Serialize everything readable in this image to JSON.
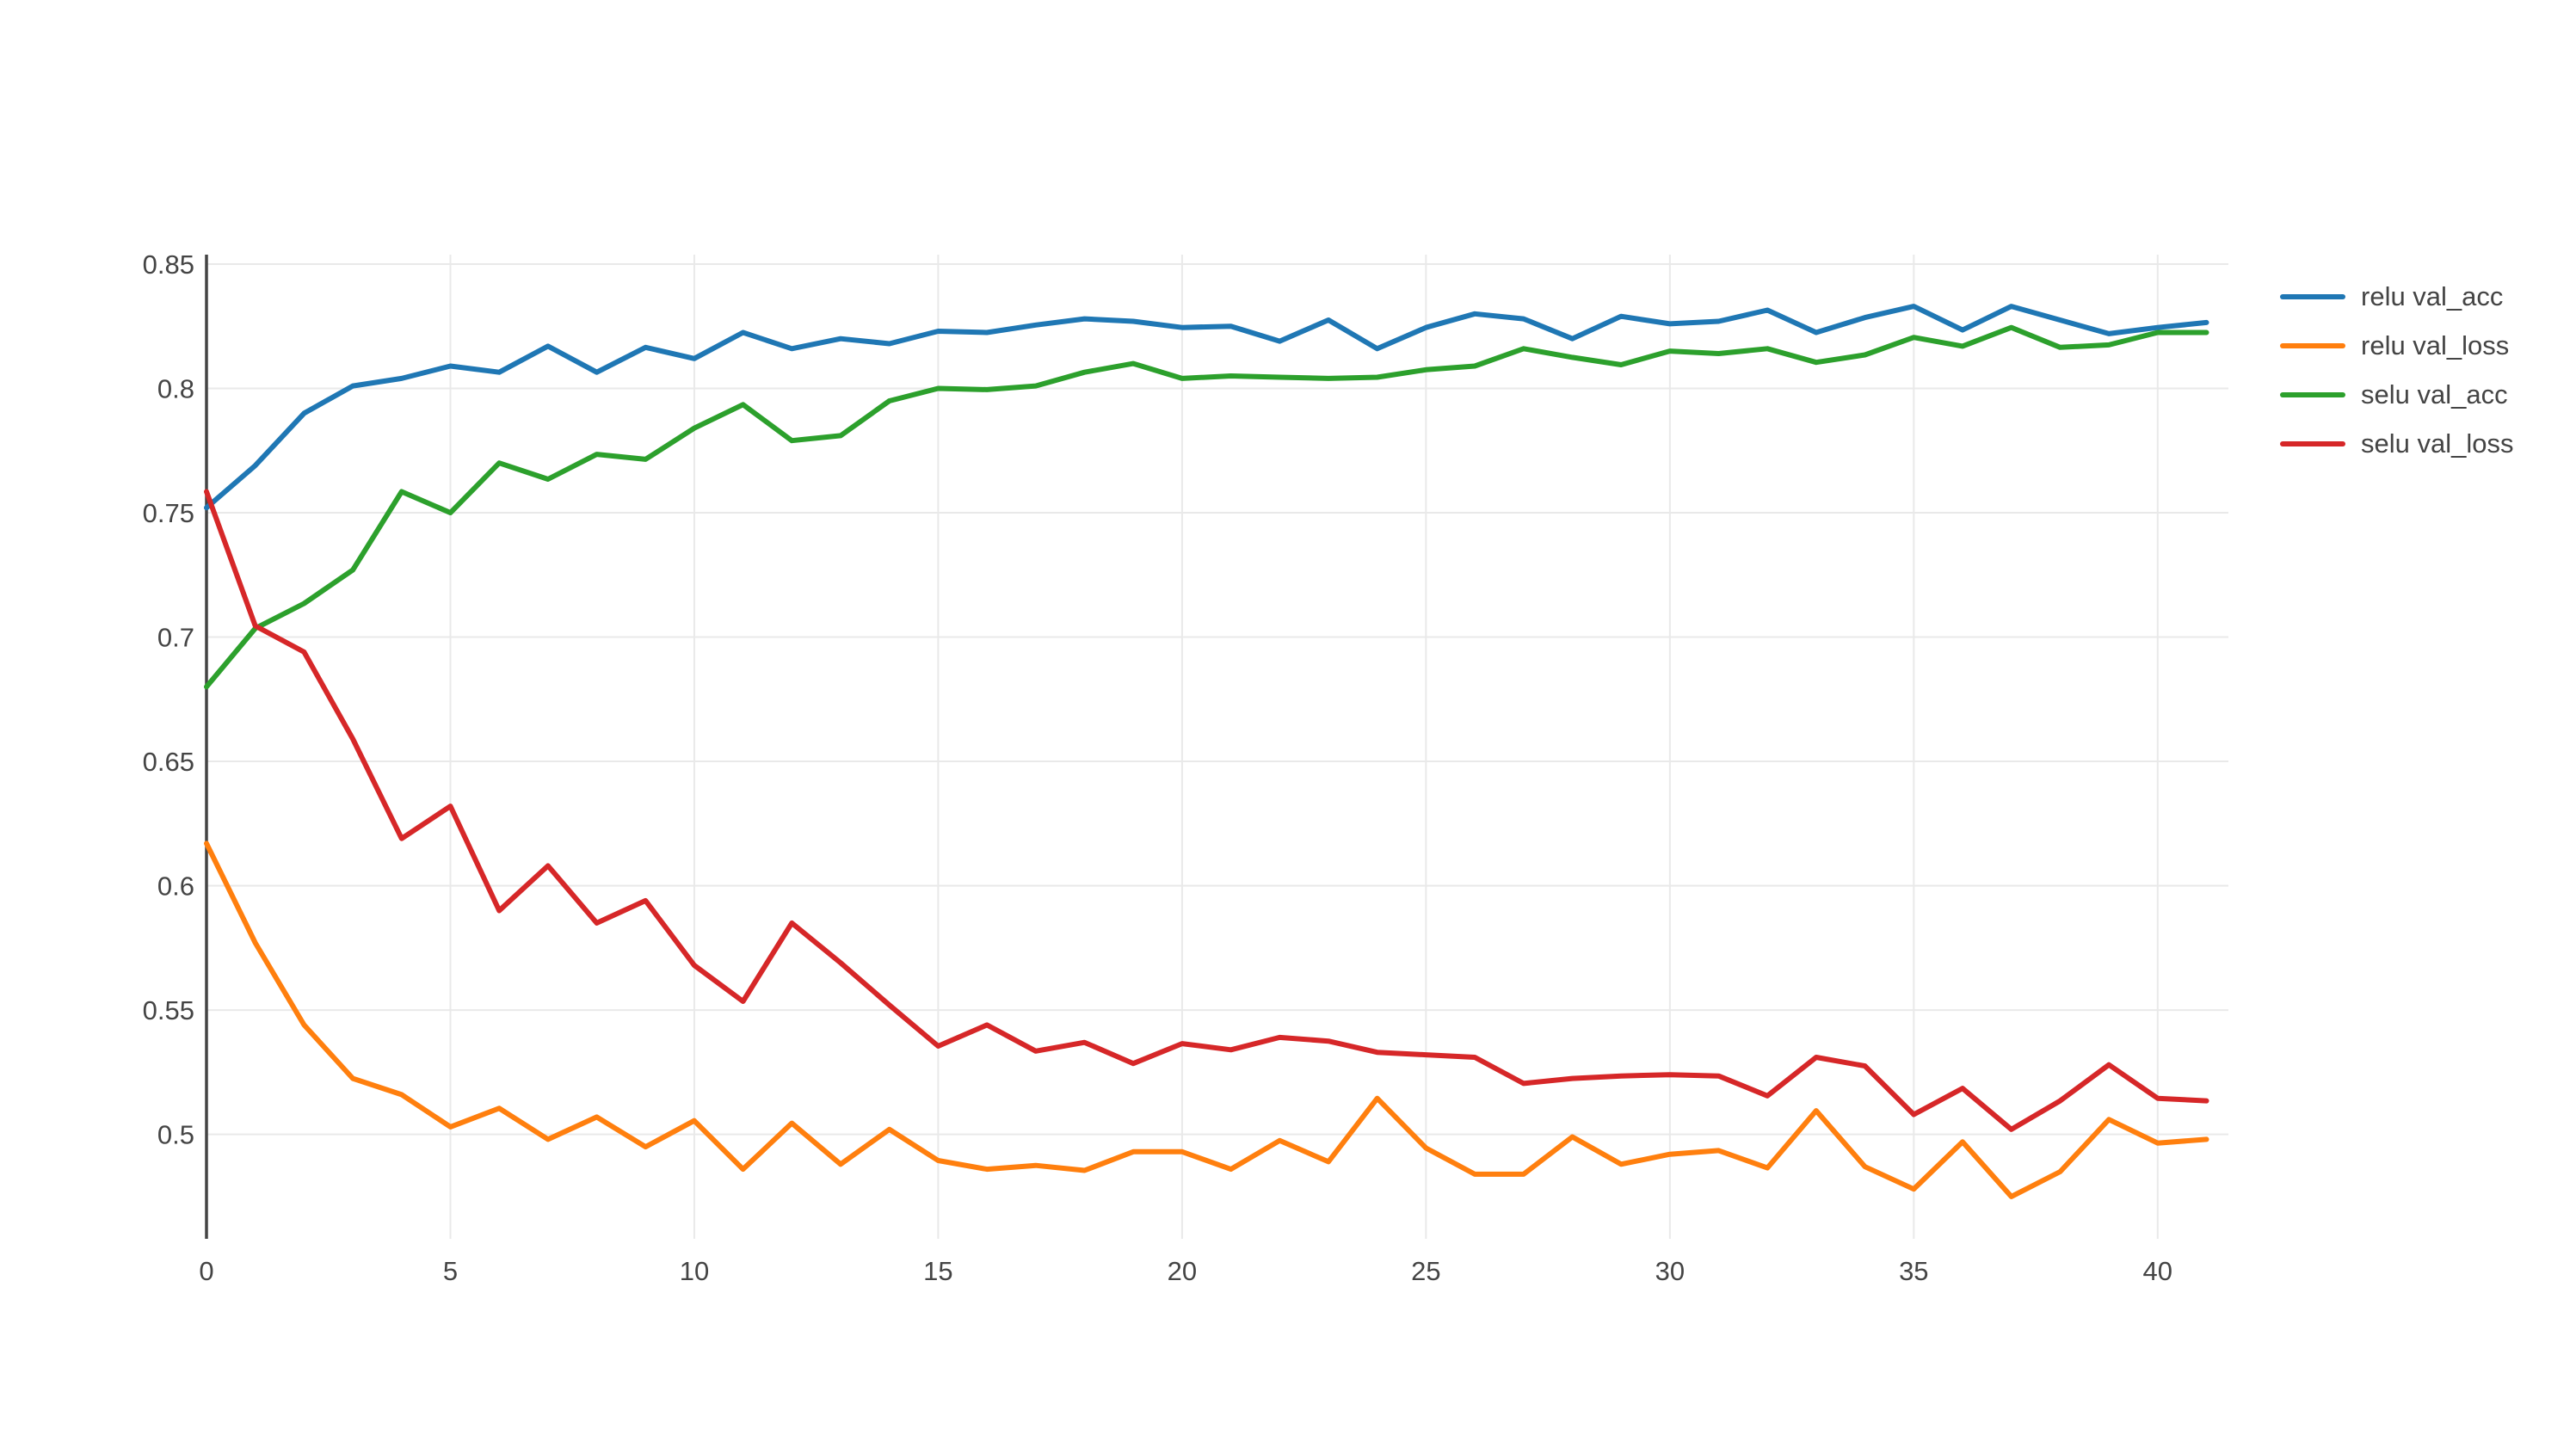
{
  "chart_data": {
    "type": "line",
    "title": "",
    "xlabel": "",
    "ylabel": "",
    "grid": true,
    "legend_position": "right",
    "x_range": [
      0,
      41.45
    ],
    "y_range": [
      0.458,
      0.8538
    ],
    "x_ticks": [
      0,
      5,
      10,
      15,
      20,
      25,
      30,
      35,
      40
    ],
    "x_tick_labels": [
      "0",
      "5",
      "10",
      "15",
      "20",
      "25",
      "30",
      "35",
      "40"
    ],
    "y_ticks": [
      0.5,
      0.55,
      0.6,
      0.65,
      0.7,
      0.75,
      0.8,
      0.85
    ],
    "y_tick_labels": [
      "0.5",
      "0.55",
      "0.6",
      "0.65",
      "0.7",
      "0.75",
      "0.8",
      "0.85"
    ],
    "x": [
      0,
      1,
      2,
      3,
      4,
      5,
      6,
      7,
      8,
      9,
      10,
      11,
      12,
      13,
      14,
      15,
      16,
      17,
      18,
      19,
      20,
      21,
      22,
      23,
      24,
      25,
      26,
      27,
      28,
      29,
      30,
      31,
      32,
      33,
      34,
      35,
      36,
      37,
      38,
      39,
      40,
      41
    ],
    "series": [
      {
        "name": "relu val_acc",
        "color": "#1f77b4",
        "values": [
          0.752,
          0.769,
          0.79,
          0.801,
          0.804,
          0.809,
          0.8065,
          0.817,
          0.8065,
          0.8165,
          0.812,
          0.8225,
          0.816,
          0.82,
          0.818,
          0.823,
          0.8225,
          0.8255,
          0.828,
          0.827,
          0.8245,
          0.825,
          0.819,
          0.8275,
          0.816,
          0.8245,
          0.83,
          0.828,
          0.82,
          0.829,
          0.826,
          0.827,
          0.8315,
          0.8225,
          0.8285,
          0.833,
          0.8235,
          0.833,
          0.8275,
          0.822,
          0.8245,
          0.8265
        ]
      },
      {
        "name": "relu val_loss",
        "color": "#ff7f0e",
        "values": [
          0.617,
          0.577,
          0.544,
          0.5225,
          0.516,
          0.503,
          0.5105,
          0.498,
          0.507,
          0.495,
          0.5055,
          0.486,
          0.5045,
          0.488,
          0.502,
          0.4895,
          0.486,
          0.4875,
          0.4855,
          0.493,
          0.493,
          0.486,
          0.4975,
          0.489,
          0.5145,
          0.4945,
          0.484,
          0.484,
          0.499,
          0.488,
          0.492,
          0.4935,
          0.4865,
          0.5095,
          0.487,
          0.478,
          0.497,
          0.475,
          0.485,
          0.506,
          0.4965,
          0.498
        ]
      },
      {
        "name": "selu val_acc",
        "color": "#2ca02c",
        "values": [
          0.68,
          0.7035,
          0.7135,
          0.727,
          0.7585,
          0.75,
          0.77,
          0.7635,
          0.7735,
          0.7715,
          0.784,
          0.7935,
          0.779,
          0.781,
          0.795,
          0.8,
          0.7995,
          0.801,
          0.8065,
          0.81,
          0.804,
          0.805,
          0.8045,
          0.804,
          0.8045,
          0.8075,
          0.809,
          0.816,
          0.8125,
          0.8095,
          0.815,
          0.814,
          0.816,
          0.8105,
          0.8135,
          0.8205,
          0.817,
          0.8245,
          0.8165,
          0.8175,
          0.8225,
          0.8225
        ]
      },
      {
        "name": "selu val_loss",
        "color": "#d62728",
        "values": [
          0.7585,
          0.7045,
          0.694,
          0.659,
          0.619,
          0.632,
          0.59,
          0.608,
          0.585,
          0.594,
          0.568,
          0.5535,
          0.585,
          0.569,
          0.552,
          0.5355,
          0.544,
          0.5335,
          0.537,
          0.5285,
          0.5365,
          0.534,
          0.539,
          0.5375,
          0.533,
          0.532,
          0.531,
          0.5205,
          0.5225,
          0.5235,
          0.524,
          0.5235,
          0.5155,
          0.531,
          0.5275,
          0.508,
          0.5185,
          0.502,
          0.5135,
          0.528,
          0.5145,
          0.5135
        ]
      }
    ],
    "style": {
      "grid_color": "#e9e9e9",
      "zeroline_color": "#444444",
      "tick_color": "#444444",
      "background": "#ffffff",
      "line_width": 6
    }
  },
  "legend": {
    "items": [
      {
        "label": "relu val_acc"
      },
      {
        "label": "relu val_loss"
      },
      {
        "label": "selu val_acc"
      },
      {
        "label": "selu val_loss"
      }
    ]
  }
}
